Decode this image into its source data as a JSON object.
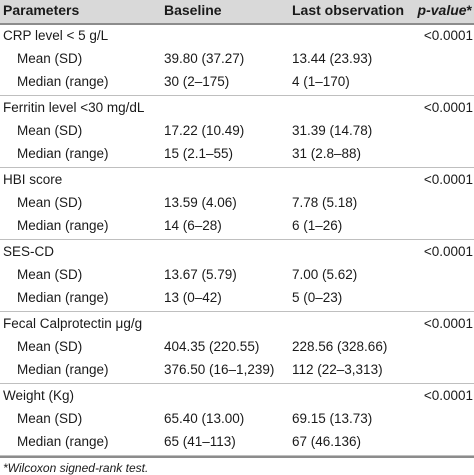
{
  "table": {
    "headers": {
      "parameters": "Parameters",
      "baseline": "Baseline",
      "last_observation": "Last observation",
      "pvalue_italic": "p-value",
      "pvalue_mark": "*"
    },
    "groups": [
      {
        "label": "CRP level < 5 g/L",
        "p_value": "<0.0001",
        "rows": [
          {
            "label": "Mean (SD)",
            "baseline": "39.80 (37.27)",
            "last": "13.44 (23.93)"
          },
          {
            "label": "Median (range)",
            "baseline": "30 (2–175)",
            "last": "4 (1–170)"
          }
        ]
      },
      {
        "label": "Ferritin level <30 mg/dL",
        "p_value": "<0.0001",
        "rows": [
          {
            "label": "Mean (SD)",
            "baseline": "17.22 (10.49)",
            "last": "31.39 (14.78)"
          },
          {
            "label": "Median (range)",
            "baseline": "15 (2.1–55)",
            "last": "31 (2.8–88)"
          }
        ]
      },
      {
        "label": "HBI score",
        "p_value": "<0.0001",
        "rows": [
          {
            "label": "Mean (SD)",
            "baseline": "13.59 (4.06)",
            "last": "7.78 (5.18)"
          },
          {
            "label": "Median (range)",
            "baseline": "14 (6–28)",
            "last": "6 (1–26)"
          }
        ]
      },
      {
        "label": "SES-CD",
        "p_value": "<0.0001",
        "rows": [
          {
            "label": "Mean (SD)",
            "baseline": "13.67 (5.79)",
            "last": "7.00 (5.62)"
          },
          {
            "label": "Median (range)",
            "baseline": "13 (0–42)",
            "last": "5 (0–23)"
          }
        ]
      },
      {
        "label": "Fecal Calprotectin μg/g",
        "p_value": "<0.0001",
        "rows": [
          {
            "label": "Mean (SD)",
            "baseline": "404.35 (220.55)",
            "last": "228.56 (328.66)"
          },
          {
            "label": "Median (range)",
            "baseline": "376.50 (16–1,239)",
            "last": "112 (22–3,313)"
          }
        ]
      },
      {
        "label": "Weight (Kg)",
        "p_value": "<0.0001",
        "rows": [
          {
            "label": "Mean (SD)",
            "baseline": "65.40 (13.00)",
            "last": "69.15 (13.73)"
          },
          {
            "label": "Median (range)",
            "baseline": "65 (41–113)",
            "last": "67 (46.136)"
          }
        ]
      }
    ],
    "footnote": "*Wilcoxon signed-rank test."
  }
}
